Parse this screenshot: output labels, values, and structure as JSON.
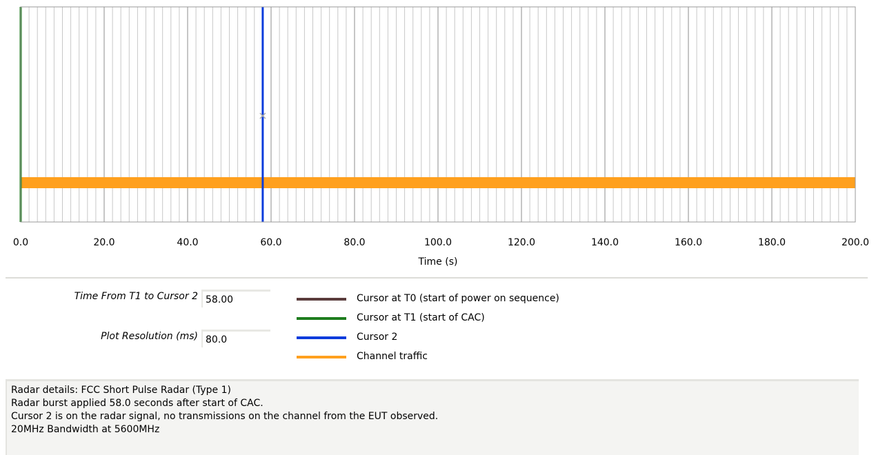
{
  "chart_data": {
    "type": "line",
    "xlim": [
      0,
      200
    ],
    "xticks": [
      {
        "value": 0,
        "label": "0.0"
      },
      {
        "value": 20,
        "label": "20.0"
      },
      {
        "value": 40,
        "label": "40.0"
      },
      {
        "value": 60,
        "label": "60.0"
      },
      {
        "value": 80,
        "label": "80.0"
      },
      {
        "value": 100,
        "label": "100.0"
      },
      {
        "value": 120,
        "label": "120.0"
      },
      {
        "value": 140,
        "label": "140.0"
      },
      {
        "value": 160,
        "label": "160.0"
      },
      {
        "value": 180,
        "label": "180.0"
      },
      {
        "value": 200,
        "label": "200.0"
      }
    ],
    "x_label": "Time (s)",
    "grid": true,
    "cursors": [
      {
        "name": "Cursor at T0 (start of power on sequence)",
        "color": "#5a3c3c",
        "x": 0
      },
      {
        "name": "Cursor at T1 (start of CAC)",
        "color": "#1e7d1e",
        "x": 0
      },
      {
        "name": "Cursor 2",
        "color": "#0a3cdc",
        "x": 58
      }
    ],
    "series": [
      {
        "name": "Channel traffic",
        "color": "#ffa01e",
        "x": [
          0,
          200
        ]
      }
    ]
  },
  "controls": [
    {
      "label": "Time From T1 to Cursor 2",
      "value": "58.00"
    },
    {
      "label": "Plot Resolution (ms)",
      "value": "80.0"
    }
  ],
  "details": [
    "Radar details: FCC Short Pulse Radar (Type 1)",
    "Radar burst applied 58.0 seconds after start of CAC.",
    "Cursor 2 is on the radar signal, no transmissions on the channel from the EUT observed.",
    "20MHz Bandwidth at 5600MHz"
  ]
}
